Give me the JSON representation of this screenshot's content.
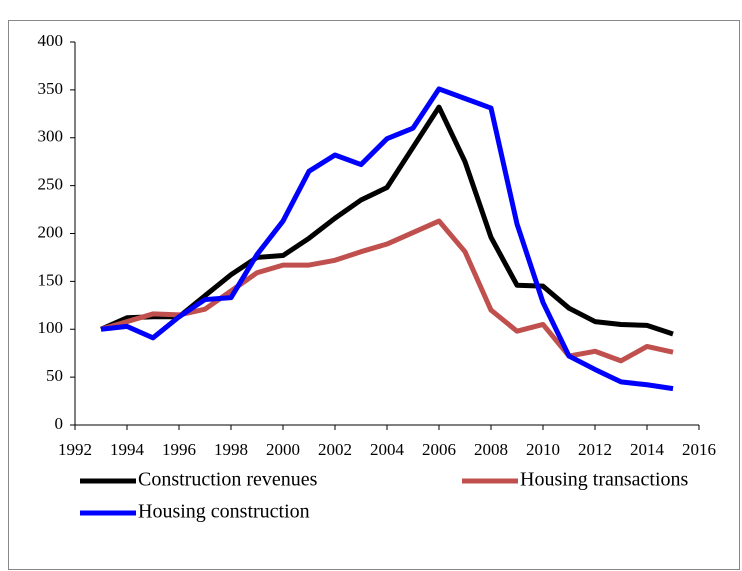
{
  "chart_data": {
    "type": "line",
    "x": [
      1993,
      1994,
      1995,
      1996,
      1997,
      1998,
      1999,
      2000,
      2001,
      2002,
      2003,
      2004,
      2005,
      2006,
      2007,
      2008,
      2009,
      2010,
      2011,
      2012,
      2013,
      2014,
      2015
    ],
    "series": [
      {
        "name": "Construction revenues",
        "color": "#000000",
        "values": [
          100,
          112,
          113,
          113,
          135,
          157,
          175,
          177,
          195,
          216,
          235,
          248,
          290,
          332,
          275,
          196,
          146,
          145,
          122,
          108,
          105,
          104,
          95
        ]
      },
      {
        "name": "Housing transactions",
        "color": "#c0504d",
        "values": [
          100,
          108,
          116,
          115,
          121,
          140,
          159,
          167,
          167,
          172,
          181,
          189,
          201,
          213,
          181,
          120,
          98,
          105,
          72,
          77,
          67,
          82,
          76
        ]
      },
      {
        "name": "Housing construction",
        "color": "#0000ff",
        "values": [
          100,
          103,
          91,
          113,
          131,
          133,
          178,
          213,
          265,
          282,
          272,
          299,
          310,
          351,
          341,
          331,
          210,
          128,
          72,
          58,
          45,
          42,
          38
        ]
      }
    ],
    "xlim": [
      1992,
      2016
    ],
    "xticks": [
      1992,
      1994,
      1996,
      1998,
      2000,
      2002,
      2004,
      2006,
      2008,
      2010,
      2012,
      2014,
      2016
    ],
    "ylim": [
      0,
      400
    ],
    "yticks": [
      0,
      50,
      100,
      150,
      200,
      250,
      300,
      350,
      400
    ],
    "grid": false,
    "legend": "bottom"
  }
}
